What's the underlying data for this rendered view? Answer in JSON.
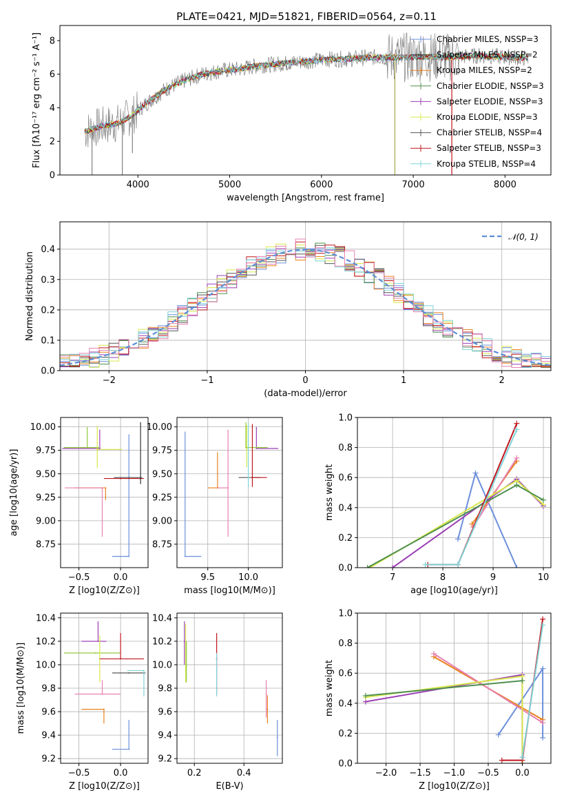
{
  "figure_title": "PLATE=0421, MJD=51821, FIBERID=0564, z=0.11",
  "colors": {
    "Chabrier MILES": "#6b8fdb",
    "Salpeter MILES": "#333333",
    "Kroupa MILES": "#e8821e",
    "Chabrier ELODIE": "#4f8f4f",
    "Salpeter ELODIE": "#9b3fb5",
    "Kroupa ELODIE": "#d8e84a",
    "Chabrier STELIB": "#555555",
    "Salpeter STELIB": "#c0141c",
    "Kroupa STELIB": "#7fd3d8",
    "pink": "#e880b0",
    "lime": "#8fc83a",
    "olive": "#a8a850",
    "gray": "#808080"
  },
  "chart_data": [
    {
      "type": "line",
      "panel": "spectrum",
      "title": "PLATE=0421, MJD=51821, FIBERID=0564, z=0.11",
      "xlabel": "wavelength [Angstrom, rest frame]",
      "ylabel": "Flux [fλ10⁻¹⁷ erg cm⁻² s⁻¹ A⁻¹]",
      "xlim": [
        3150,
        8500
      ],
      "ylim": [
        0,
        8.9
      ],
      "xticks": [
        4000,
        5000,
        6000,
        7000,
        8000
      ],
      "yticks": [
        0,
        2,
        4,
        6,
        8
      ],
      "legend_position": "top-right",
      "legend": [
        "Chabrier MILES, NSSP=3",
        "Salpeter MILES, NSSP=2",
        "Kroupa MILES, NSSP=2",
        "Chabrier ELODIE, NSSP=3",
        "Salpeter ELODIE, NSSP=3",
        "Kroupa ELODIE, NSSP=3",
        "Chabrier STELIB, NSSP=4",
        "Salpeter STELIB, NSSP=3",
        "Kroupa STELIB, NSSP=4"
      ],
      "legend_colors": [
        "#6b8fdb",
        "#333333",
        "#e8821e",
        "#4f8f4f",
        "#9b3fb5",
        "#d8e84a",
        "#555555",
        "#c0141c",
        "#7fd3d8"
      ],
      "data": {
        "x": [
          3420,
          3600,
          3800,
          3950,
          4100,
          4300,
          4500,
          4700,
          4900,
          5100,
          5300,
          5500,
          5700,
          5900,
          6100,
          6300,
          6500,
          6700,
          6900,
          7100,
          7300,
          7500,
          7700,
          7900,
          8100,
          8250
        ],
        "y": [
          2.6,
          2.9,
          3.1,
          3.6,
          4.3,
          5.1,
          5.6,
          6.0,
          6.2,
          6.3,
          6.5,
          6.6,
          6.7,
          6.8,
          6.9,
          6.9,
          7.0,
          7.0,
          7.0,
          7.05,
          7.0,
          7.05,
          7.1,
          7.05,
          7.0,
          6.95
        ]
      }
    },
    {
      "type": "line",
      "panel": "residuals",
      "xlabel": "(data-model)/error",
      "ylabel": "Normed distribution",
      "xlim": [
        -2.5,
        2.5
      ],
      "ylim": [
        0,
        0.49
      ],
      "xticks": [
        -2,
        -1,
        0,
        1,
        2
      ],
      "yticks": [
        0.0,
        0.1,
        0.2,
        0.3,
        0.4
      ],
      "legend": [
        "𝒩(0, 1)"
      ],
      "legend_position": "top-right",
      "gaussian": {
        "mean": 0,
        "sigma": 1
      }
    },
    {
      "type": "scatter",
      "panel": "age-vs-Z",
      "xlabel": "Z [log10(Z/Z⊙)]",
      "ylabel": "age  [log10(age/yr)]",
      "xlim": [
        -0.72,
        0.33
      ],
      "ylim": [
        8.5,
        10.1
      ],
      "xticks": [
        -0.5,
        0.0
      ],
      "yticks": [
        8.75,
        9.0,
        9.25,
        9.5,
        9.75,
        10.0
      ],
      "points": [
        {
          "x": 0.1,
          "y": 8.62,
          "xerr": [
            0.2,
            0.0
          ],
          "yerr": [
            0.0,
            1.3
          ],
          "color": "#6b8fdb"
        },
        {
          "x": -0.18,
          "y": 9.35,
          "xerr": [
            0.38,
            0.0
          ],
          "yerr": [
            0.13,
            0.0
          ],
          "color": "#e8821e"
        },
        {
          "x": -0.22,
          "y": 9.35,
          "xerr": [
            0.45,
            0.0
          ],
          "yerr": [
            0.52,
            0.0
          ],
          "color": "#e880b0"
        },
        {
          "x": -0.25,
          "y": 9.77,
          "xerr": [
            0.45,
            0.0
          ],
          "yerr": [
            0.0,
            0.2
          ],
          "color": "#9b3fb5"
        },
        {
          "x": -0.4,
          "y": 9.78,
          "xerr": [
            0.28,
            0.15
          ],
          "yerr": [
            0.0,
            0.22
          ],
          "color": "#8fc83a"
        },
        {
          "x": -0.28,
          "y": 9.76,
          "xerr": [
            0.0,
            0.3
          ],
          "yerr": [
            0.2,
            0.25
          ],
          "color": "#d8e84a"
        },
        {
          "x": 0.1,
          "y": 9.46,
          "xerr": [
            0.18,
            0.16
          ],
          "yerr": [
            0.0,
            0.0
          ],
          "color": "#555555"
        },
        {
          "x": 0.0,
          "y": 9.45,
          "xerr": [
            0.2,
            0.28
          ],
          "yerr": [
            0.0,
            0.0
          ],
          "color": "#c0141c"
        },
        {
          "x": 0.24,
          "y": 9.45,
          "xerr": [
            0.0,
            0.0
          ],
          "yerr": [
            0.06,
            0.6
          ],
          "color": "#333333"
        }
      ]
    },
    {
      "type": "scatter",
      "panel": "age-vs-mass",
      "xlabel": "mass [log10(M/M⊙)]",
      "ylabel": "",
      "xlim": [
        9.12,
        10.42
      ],
      "ylim": [
        8.5,
        10.1
      ],
      "xticks": [
        9.5,
        10.0
      ],
      "yticks": [
        8.75,
        9.0,
        9.25,
        9.5,
        9.75,
        10.0
      ],
      "points": [
        {
          "x": 9.22,
          "y": 8.62,
          "xerr": [
            0.0,
            0.2
          ],
          "yerr": [
            0.0,
            1.33
          ],
          "color": "#6b8fdb"
        },
        {
          "x": 9.62,
          "y": 9.35,
          "xerr": [
            0.12,
            0.0
          ],
          "yerr": [
            0.0,
            0.38
          ],
          "color": "#e8821e"
        },
        {
          "x": 9.75,
          "y": 9.35,
          "xerr": [
            0.13,
            0.0
          ],
          "yerr": [
            0.52,
            0.62
          ],
          "color": "#e880b0"
        },
        {
          "x": 10.1,
          "y": 9.77,
          "xerr": [
            0.0,
            0.27
          ],
          "yerr": [
            0.0,
            0.23
          ],
          "color": "#9b3fb5"
        },
        {
          "x": 9.97,
          "y": 9.78,
          "xerr": [
            0.0,
            0.27
          ],
          "yerr": [
            0.0,
            0.27
          ],
          "color": "#8fc83a"
        },
        {
          "x": 9.98,
          "y": 9.77,
          "xerr": [
            0.0,
            0.0
          ],
          "yerr": [
            0.2,
            0.25
          ],
          "color": "#d8e84a"
        },
        {
          "x": 10.0,
          "y": 9.46,
          "xerr": [
            0.12,
            0.15
          ],
          "yerr": [
            0.0,
            0.0
          ],
          "color": "#555555"
        },
        {
          "x": 10.05,
          "y": 9.46,
          "xerr": [
            0.0,
            0.18
          ],
          "yerr": [
            0.1,
            0.57
          ],
          "color": "#c0141c"
        },
        {
          "x": 10.0,
          "y": 9.46,
          "xerr": [
            0.0,
            0.0
          ],
          "yerr": [
            0.1,
            0.58
          ],
          "color": "#7fd3d8"
        }
      ]
    },
    {
      "type": "line",
      "panel": "weight-vs-age",
      "xlabel": "age  [log10(age/yr)]",
      "ylabel": "mass weight",
      "xlim": [
        6.3,
        10.15
      ],
      "ylim": [
        0,
        1.0
      ],
      "xticks": [
        7,
        8,
        9,
        10
      ],
      "yticks": [
        0.0,
        0.2,
        0.4,
        0.6,
        0.8,
        1.0
      ],
      "series": [
        {
          "x": [
            8.3,
            8.65,
            9.47
          ],
          "y": [
            0.19,
            0.63,
            0.0
          ],
          "color": "#6b8fdb"
        },
        {
          "x": [
            8.58,
            9.47
          ],
          "y": [
            0.29,
            0.71
          ],
          "color": "#e8821e"
        },
        {
          "x": [
            8.6,
            9.47
          ],
          "y": [
            0.27,
            0.73
          ],
          "color": "#e880b0"
        },
        {
          "x": [
            7.0,
            9.47,
            10.0
          ],
          "y": [
            0.0,
            0.59,
            0.41
          ],
          "color": "#9b3fb5"
        },
        {
          "x": [
            6.55,
            9.47,
            10.0
          ],
          "y": [
            0.0,
            0.58,
            0.42
          ],
          "color": "#d8e84a"
        },
        {
          "x": [
            6.5,
            9.47,
            10.0
          ],
          "y": [
            0.0,
            0.55,
            0.45
          ],
          "color": "#4f8f4f"
        },
        {
          "x": [
            7.7,
            8.3,
            9.47
          ],
          "y": [
            0.02,
            0.02,
            0.96
          ],
          "color": "#c0141c"
        },
        {
          "x": [
            7.65,
            8.3,
            9.47
          ],
          "y": [
            0.02,
            0.02,
            0.92
          ],
          "color": "#7fd3d8"
        }
      ]
    },
    {
      "type": "scatter",
      "panel": "mass-vs-Z",
      "xlabel": "Z [log10(Z/Z⊙)]",
      "ylabel": "mass [log10(M/M⊙)]",
      "xlim": [
        -0.72,
        0.33
      ],
      "ylim": [
        9.16,
        10.44
      ],
      "xticks": [
        -0.5,
        0.0
      ],
      "yticks": [
        9.2,
        9.4,
        9.6,
        9.8,
        10.0,
        10.2,
        10.4
      ],
      "points": [
        {
          "x": 0.1,
          "y": 9.28,
          "xerr": [
            0.2,
            0.0
          ],
          "yerr": [
            0.0,
            0.25
          ],
          "color": "#6b8fdb"
        },
        {
          "x": -0.2,
          "y": 9.62,
          "xerr": [
            0.27,
            0.0
          ],
          "yerr": [
            0.12,
            0.0
          ],
          "color": "#e8821e"
        },
        {
          "x": -0.22,
          "y": 9.75,
          "xerr": [
            0.33,
            0.22
          ],
          "yerr": [
            0.0,
            0.12
          ],
          "color": "#e880b0"
        },
        {
          "x": -0.27,
          "y": 10.2,
          "xerr": [
            0.2,
            0.1
          ],
          "yerr": [
            0.0,
            0.17
          ],
          "color": "#9b3fb5"
        },
        {
          "x": -0.3,
          "y": 10.1,
          "xerr": [
            0.38,
            0.3
          ],
          "yerr": [
            0.0,
            0.0
          ],
          "color": "#8fc83a"
        },
        {
          "x": -0.25,
          "y": 10.1,
          "xerr": [
            0.0,
            0.0
          ],
          "yerr": [
            0.25,
            0.15
          ],
          "color": "#d8e84a"
        },
        {
          "x": 0.1,
          "y": 9.93,
          "xerr": [
            0.2,
            0.2
          ],
          "yerr": [
            0.0,
            0.0
          ],
          "color": "#555555"
        },
        {
          "x": 0.0,
          "y": 10.05,
          "xerr": [
            0.25,
            0.28
          ],
          "yerr": [
            0.0,
            0.22
          ],
          "color": "#c0141c"
        },
        {
          "x": 0.28,
          "y": 9.95,
          "xerr": [
            0.2,
            0.0
          ],
          "yerr": [
            0.22,
            0.0
          ],
          "color": "#7fd3d8"
        }
      ]
    },
    {
      "type": "scatter",
      "panel": "mass-vs-EBV",
      "xlabel": "E(B-V)",
      "ylabel": "",
      "xlim": [
        0.13,
        0.555
      ],
      "ylim": [
        9.16,
        10.44
      ],
      "xticks": [
        0.2,
        0.4
      ],
      "yticks": [
        9.2,
        9.4,
        9.6,
        9.8,
        10.0,
        10.2,
        10.4
      ],
      "points": [
        {
          "x": 0.535,
          "y": 9.38,
          "xerr": [
            0.0,
            0.0
          ],
          "yerr": [
            0.16,
            0.15
          ],
          "color": "#6b8fdb"
        },
        {
          "x": 0.495,
          "y": 9.62,
          "xerr": [
            0.0,
            0.0
          ],
          "yerr": [
            0.12,
            0.12
          ],
          "color": "#e8821e"
        },
        {
          "x": 0.49,
          "y": 9.75,
          "xerr": [
            0.0,
            0.0
          ],
          "yerr": [
            0.2,
            0.12
          ],
          "color": "#e880b0"
        },
        {
          "x": 0.16,
          "y": 10.2,
          "xerr": [
            0.0,
            0.0
          ],
          "yerr": [
            0.2,
            0.17
          ],
          "color": "#9b3fb5"
        },
        {
          "x": 0.165,
          "y": 10.1,
          "xerr": [
            0.0,
            0.0
          ],
          "yerr": [
            0.25,
            0.25
          ],
          "color": "#d8e84a"
        },
        {
          "x": 0.168,
          "y": 10.0,
          "xerr": [
            0.0,
            0.0
          ],
          "yerr": [
            0.15,
            0.2
          ],
          "color": "#8fc83a"
        },
        {
          "x": 0.29,
          "y": 10.05,
          "xerr": [
            0.0,
            0.0
          ],
          "yerr": [
            0.3,
            0.22
          ],
          "color": "#c0141c"
        },
        {
          "x": 0.29,
          "y": 9.95,
          "xerr": [
            0.0,
            0.0
          ],
          "yerr": [
            0.22,
            0.15
          ],
          "color": "#7fd3d8"
        }
      ]
    },
    {
      "type": "line",
      "panel": "weight-vs-Z",
      "xlabel": "Z [log10(Z/Z⊙)]",
      "ylabel": "mass weight",
      "xlim": [
        -2.42,
        0.42
      ],
      "ylim": [
        0,
        1.0
      ],
      "xticks": [
        -2.0,
        -1.5,
        -1.0,
        -0.5,
        0.0
      ],
      "yticks": [
        0.0,
        0.2,
        0.4,
        0.6,
        0.8,
        1.0
      ],
      "series": [
        {
          "x": [
            -0.35,
            0.3,
            0.3
          ],
          "y": [
            0.19,
            0.63,
            0.17
          ],
          "color": "#6b8fdb"
        },
        {
          "x": [
            -1.3,
            0.3
          ],
          "y": [
            0.71,
            0.29
          ],
          "color": "#e8821e"
        },
        {
          "x": [
            -1.3,
            0.3
          ],
          "y": [
            0.73,
            0.27
          ],
          "color": "#e880b0"
        },
        {
          "x": [
            -2.3,
            0.0,
            0.0
          ],
          "y": [
            0.41,
            0.59,
            0.0
          ],
          "color": "#9b3fb5"
        },
        {
          "x": [
            -2.3,
            0.0,
            0.0
          ],
          "y": [
            0.44,
            0.58,
            0.0
          ],
          "color": "#d8e84a"
        },
        {
          "x": [
            -2.3,
            0.0
          ],
          "y": [
            0.45,
            0.55
          ],
          "color": "#4f8f4f"
        },
        {
          "x": [
            -0.3,
            0.0,
            0.3
          ],
          "y": [
            0.02,
            0.02,
            0.96
          ],
          "color": "#c0141c"
        },
        {
          "x": [
            0.0,
            0.0,
            0.3
          ],
          "y": [
            0.04,
            0.04,
            0.92
          ],
          "color": "#7fd3d8"
        }
      ]
    }
  ]
}
